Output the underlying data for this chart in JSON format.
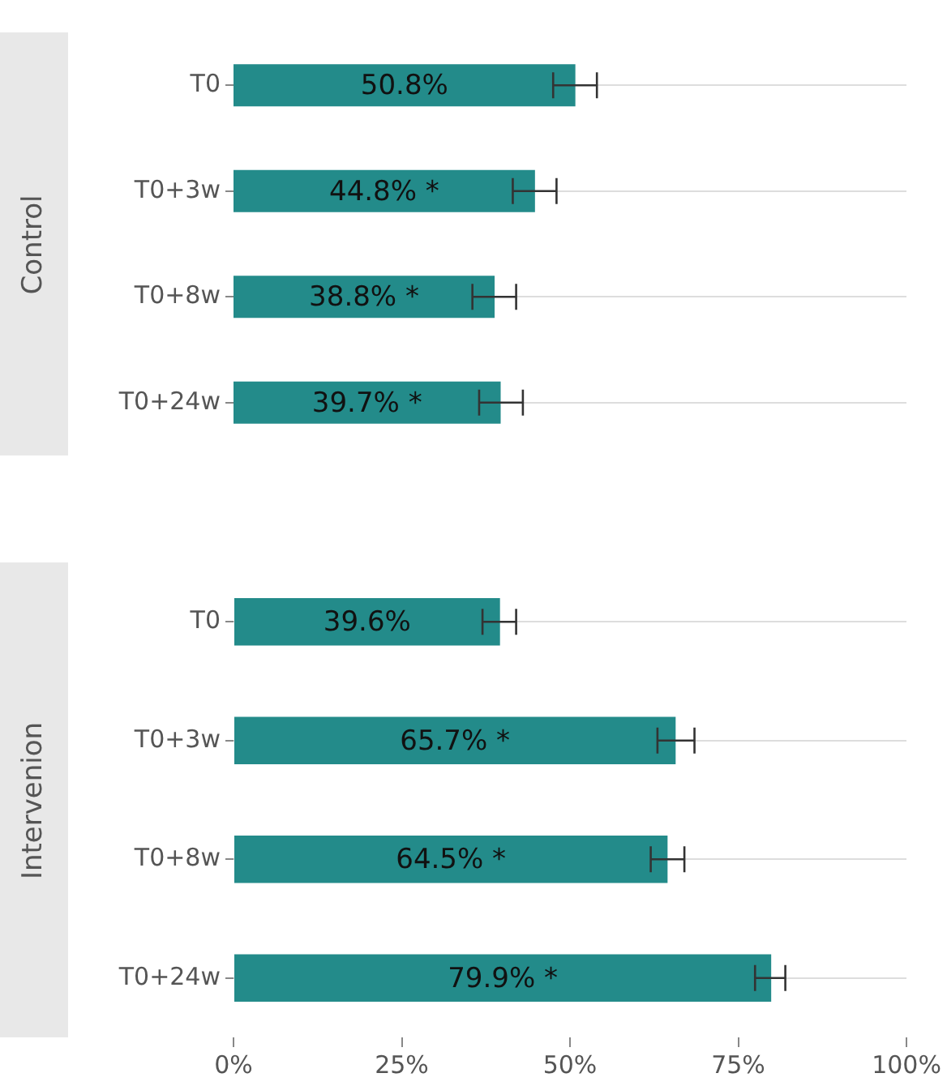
{
  "chart_data": [
    {
      "type": "bar",
      "title": "Control",
      "orientation": "horizontal",
      "categories": [
        "T0",
        "T0+3w",
        "T0+8w",
        "T0+24w"
      ],
      "values": [
        50.8,
        44.8,
        38.8,
        39.7
      ],
      "color": "#238b8a",
      "errors": [
        [
          47.5,
          54
        ],
        [
          41.5,
          48
        ],
        [
          35.5,
          42
        ],
        [
          36.5,
          43
        ]
      ],
      "value_labels": [
        "50.8%",
        "44.8% *",
        "38.8% *",
        "39.7% *"
      ],
      "xlim": [
        0,
        100
      ],
      "grid": "y",
      "tick_labels": "y"
    },
    {
      "type": "bar",
      "title": "Intervenion",
      "orientation": "horizontal",
      "categories": [
        "T0",
        "T0+3w",
        "T0+8w",
        "T0+24w"
      ],
      "values": [
        39.6,
        65.7,
        64.5,
        79.9
      ],
      "color": "#238b8a",
      "errors": [
        [
          37,
          42
        ],
        [
          63,
          68.5
        ],
        [
          62,
          67
        ],
        [
          77.5,
          82
        ]
      ],
      "value_labels": [
        "39.6%",
        "65.7% *",
        "64.5% *",
        "79.9% *"
      ],
      "xlim": [
        0,
        100
      ],
      "xticks": [
        {
          "value": 0,
          "label": "0%"
        },
        {
          "value": 25,
          "label": "25%"
        },
        {
          "value": 50,
          "label": "50%"
        },
        {
          "value": 75,
          "label": "75%"
        },
        {
          "value": 100,
          "label": "100%"
        }
      ],
      "grid": "y"
    }
  ]
}
